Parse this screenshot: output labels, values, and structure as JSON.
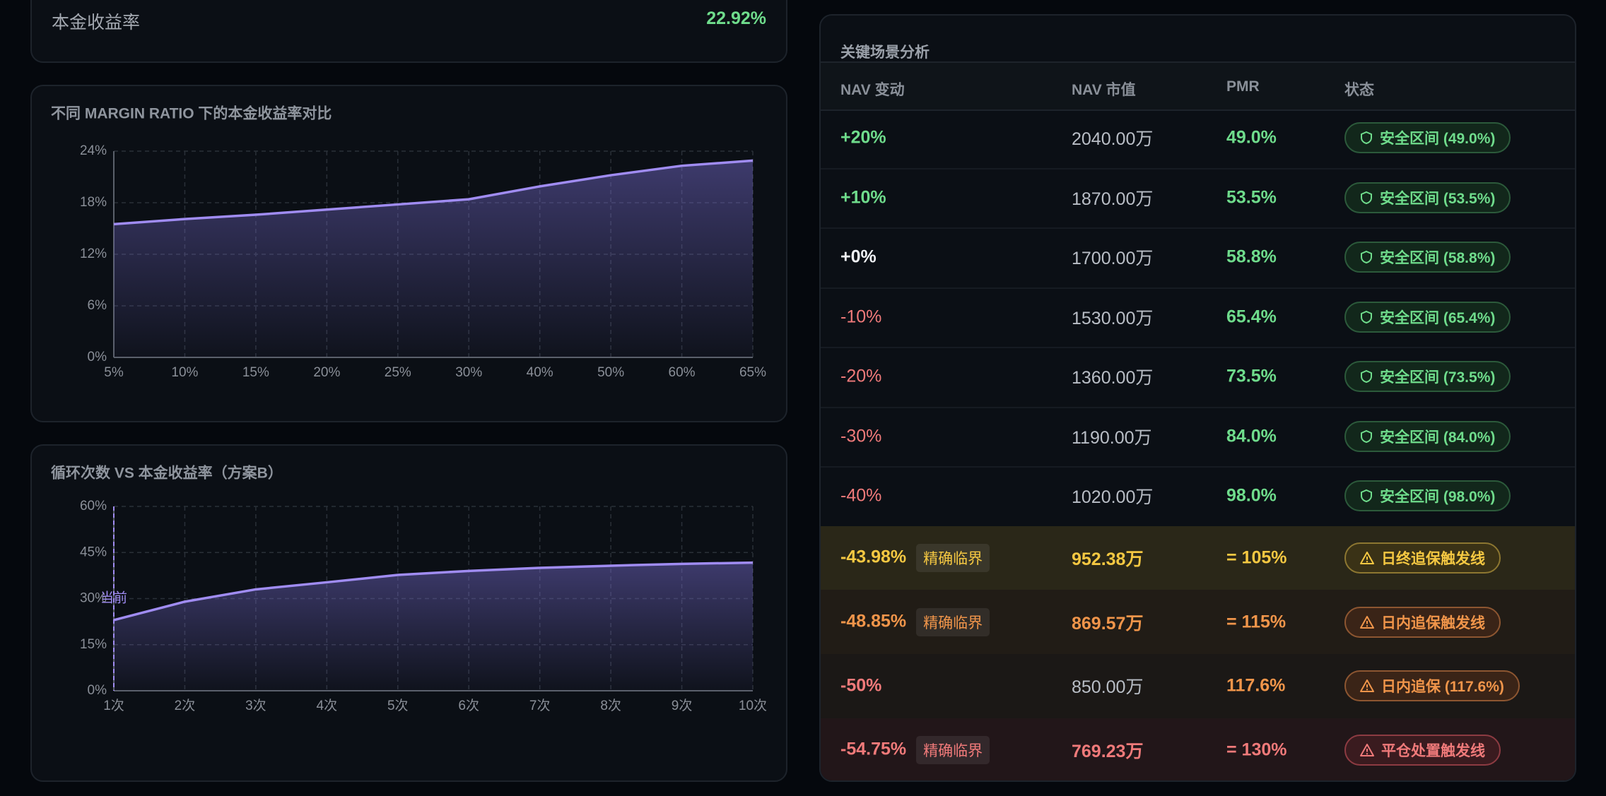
{
  "summary": {
    "label": "本金收益率",
    "value": "22.92%"
  },
  "chart_data": [
    {
      "type": "line",
      "title": "不同 MARGIN RATIO 下的本金收益率对比",
      "categories": [
        "5%",
        "10%",
        "15%",
        "20%",
        "25%",
        "30%",
        "40%",
        "50%",
        "60%",
        "65%"
      ],
      "series": [
        {
          "color": "#a08cf2",
          "values": [
            15.5,
            16.1,
            16.6,
            17.2,
            17.8,
            18.4,
            19.9,
            21.2,
            22.3,
            22.9
          ]
        }
      ],
      "ylim": [
        0,
        24
      ],
      "yticks": [
        {
          "value": 0,
          "label": "0%"
        },
        {
          "value": 6,
          "label": "6%"
        },
        {
          "value": 12,
          "label": "12%"
        },
        {
          "value": 18,
          "label": "18%"
        },
        {
          "value": 24,
          "label": "24%"
        }
      ],
      "grid": true
    },
    {
      "type": "line",
      "title": "循环次数 VS 本金收益率（方案B）",
      "categories": [
        "1次",
        "2次",
        "3次",
        "4次",
        "5次",
        "6次",
        "7次",
        "8次",
        "9次",
        "10次"
      ],
      "series": [
        {
          "color": "#a08cf2",
          "values": [
            23,
            29,
            33,
            35.3,
            37.7,
            39,
            40,
            40.7,
            41.3,
            41.7
          ]
        }
      ],
      "ylim": [
        0,
        60
      ],
      "yticks": [
        {
          "value": 0,
          "label": "0%"
        },
        {
          "value": 15,
          "label": "15%"
        },
        {
          "value": 30,
          "label": "30%"
        },
        {
          "value": 45,
          "label": "45%"
        },
        {
          "value": 60,
          "label": "60%"
        }
      ],
      "grid": true,
      "marker_x": "1次",
      "annotation": "当前"
    }
  ],
  "table": {
    "title": "关键场景分析",
    "columns": [
      "NAV 变动",
      "NAV 市值",
      "PMR",
      "状态"
    ],
    "rows": [
      {
        "change": "+20%",
        "nav": "2040.00万",
        "pmr": "49.0%",
        "status": "安全区间 (49.0%)"
      },
      {
        "change": "+10%",
        "nav": "1870.00万",
        "pmr": "53.5%",
        "status": "安全区间 (53.5%)"
      },
      {
        "change": "+0%",
        "nav": "1700.00万",
        "pmr": "58.8%",
        "status": "安全区间 (58.8%)"
      },
      {
        "change": "-10%",
        "nav": "1530.00万",
        "pmr": "65.4%",
        "status": "安全区间 (65.4%)"
      },
      {
        "change": "-20%",
        "nav": "1360.00万",
        "pmr": "73.5%",
        "status": "安全区间 (73.5%)"
      },
      {
        "change": "-30%",
        "nav": "1190.00万",
        "pmr": "84.0%",
        "status": "安全区间 (84.0%)"
      },
      {
        "change": "-40%",
        "nav": "1020.00万",
        "pmr": "98.0%",
        "status": "安全区间 (98.0%)"
      },
      {
        "change": "-43.98%",
        "tag": "精确临界",
        "nav": "952.38万",
        "pmr": "= 105%",
        "status": "日终追保触发线"
      },
      {
        "change": "-48.85%",
        "tag": "精确临界",
        "nav": "869.57万",
        "pmr": "= 115%",
        "status": "日内追保触发线"
      },
      {
        "change": "-50%",
        "nav": "850.00万",
        "pmr": "117.6%",
        "status": "日内追保 (117.6%)"
      },
      {
        "change": "-54.75%",
        "tag": "精确临界",
        "nav": "769.23万",
        "pmr": "= 130%",
        "status": "平仓处置触发线"
      }
    ]
  }
}
